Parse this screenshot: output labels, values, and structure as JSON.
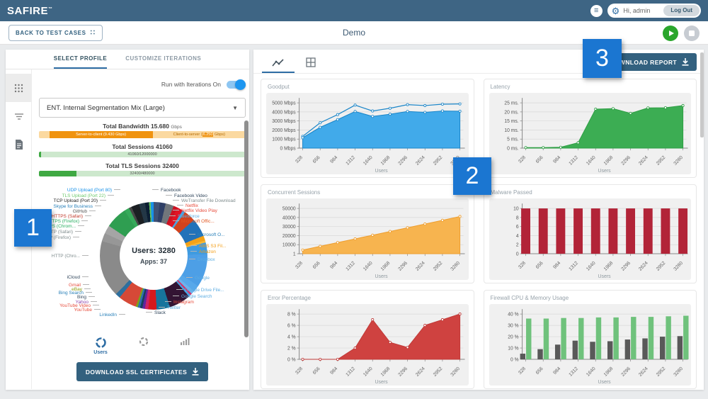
{
  "nav": {
    "brand": "SAFIRE",
    "greeting": "Hi, admin",
    "logout_label": "Log Out"
  },
  "header": {
    "back_button": "BACK TO TEST CASES",
    "title": "Demo"
  },
  "callouts": {
    "one": "1",
    "two": "2",
    "three": "3"
  },
  "left_panel": {
    "tabs": [
      {
        "label": "SELECT PROFILE"
      },
      {
        "label": "CUSTOMIZE ITERATIONS"
      }
    ],
    "iterations_toggle_label": "Run with Iterations On",
    "profile_select_value": "ENT. Internal Segmentation Mix (Large)",
    "bandwidth": {
      "title": "Total Bandwidth  15.680",
      "unit": "Gbps",
      "server_to_client": "Server-to-client (9.430 Gbps)",
      "client_prefix": "Client-to-server (",
      "client_value": "6.250",
      "client_suffix": " Gbps)"
    },
    "sessions": {
      "title": "Total Sessions 41060",
      "bar_text": "41060/12000000",
      "fill_pct": 1
    },
    "tls_sessions": {
      "title": "Total TLS Sessions 32400",
      "bar_text": "32400/480000",
      "fill_pct": 18
    },
    "donut": {
      "center_line1": "Users: 3280",
      "center_line2": "Apps: 37",
      "segments": [
        {
          "name": "Facebook",
          "color": "#3e5175",
          "pct": 1.8
        },
        {
          "name": "Facebook Video",
          "color": "#2f3f66",
          "pct": 1.8
        },
        {
          "name": "WeTransfer File Download",
          "color": "#71767b",
          "pct": 2.5
        },
        {
          "name": "Netflix",
          "color": "#cc1222",
          "pct": 1.2
        },
        {
          "name": "Netflix Video Play",
          "color": "#e01425",
          "pct": 1.8
        },
        {
          "name": "Salesforce",
          "color": "#4aa3df",
          "pct": 0.8
        },
        {
          "name": "Microsoft Office 365",
          "color": "#d2421e",
          "pct": 3.5
        },
        {
          "name": "Microsoft OneDrive",
          "color": "#2272b9",
          "pct": 5.5
        },
        {
          "name": "AWS S3 File",
          "color": "#f3a218",
          "pct": 1.5
        },
        {
          "name": "Amazon",
          "color": "#f7b733",
          "pct": 0.6
        },
        {
          "name": "Dropbox",
          "color": "#3f9be0",
          "pct": 3.5
        },
        {
          "name": "Google",
          "color": "#4d9fe6",
          "pct": 10
        },
        {
          "name": "Google Drive File",
          "color": "#57a8ea",
          "pct": 2
        },
        {
          "name": "Google Search",
          "color": "#6db3ec",
          "pct": 1
        },
        {
          "name": "Instagram",
          "color": "#d6356b",
          "pct": 0.5
        },
        {
          "name": "Twitter",
          "color": "#45a4e6",
          "pct": 0.6
        },
        {
          "name": "Slack",
          "color": "#331433",
          "pct": 6.5
        },
        {
          "name": "LinkedIn",
          "color": "#17749c",
          "pct": 4
        },
        {
          "name": "YouTube",
          "color": "#d7191c",
          "pct": 2.5
        },
        {
          "name": "YouTube Video",
          "color": "#cc2366",
          "pct": 1
        },
        {
          "name": "Yahoo",
          "color": "#5f259f",
          "pct": 0.8
        },
        {
          "name": "Bing",
          "color": "#18405c",
          "pct": 0.7
        },
        {
          "name": "Bing Search",
          "color": "#2d6fb2",
          "pct": 0.7
        },
        {
          "name": "eBay",
          "color": "#7aa31a",
          "pct": 0.6
        },
        {
          "name": "Gmail",
          "color": "#d64937",
          "pct": 5.5
        },
        {
          "name": "iCloud",
          "color": "#2d6f9e",
          "pct": 1.5
        },
        {
          "name": "HTTP (Chrome)",
          "color": "#8a8a8a",
          "pct": 17
        },
        {
          "name": "HTTP (Firefox)",
          "color": "#979797",
          "pct": 2.5
        },
        {
          "name": "HTTP (Safari)",
          "color": "#a5a5a5",
          "pct": 2.5
        },
        {
          "name": "HTTPS (Chrome)",
          "color": "#2f9e51",
          "pct": 6.5
        },
        {
          "name": "HTTPS (Firefox)",
          "color": "#36aa5a",
          "pct": 1.5
        },
        {
          "name": "HTTPS (Safari)",
          "color": "#474747",
          "pct": 0.8
        },
        {
          "name": "GitHub",
          "color": "#1b1f23",
          "pct": 2.4
        },
        {
          "name": "Skype for Business",
          "color": "#233746",
          "pct": 1.8
        },
        {
          "name": "TCP Upload (Port 20)",
          "color": "#0b1e33",
          "pct": 1.2
        },
        {
          "name": "TLS Upload (Port 22)",
          "color": "#62c462",
          "pct": 0.5
        },
        {
          "name": "UDP Upload (Port 80)",
          "color": "#1791e8",
          "pct": 0.9
        }
      ],
      "labels_left": [
        {
          "text": "UDP Upload (Port 80)",
          "color": "#1791e8"
        },
        {
          "text": "TLS Upload (Port 22)",
          "color": "#6cc96c"
        },
        {
          "text": "TCP Upload (Port 20)",
          "color": "#222222"
        },
        {
          "text": "Skype for Business",
          "color": "#2980b9"
        },
        {
          "text": "GitHub",
          "color": "#555555"
        },
        {
          "text": "HTTPS (Safari)",
          "color": "#c0392b"
        },
        {
          "text": "HTTPS (Firefox)",
          "color": "#27ae60"
        },
        {
          "text": "HTTPS (Chrom...",
          "color": "#27ae60"
        },
        {
          "text": "HTTP (Safari)",
          "color": "#7f8c8d"
        },
        {
          "text": "HTTP (Firefox)",
          "color": "#7f8c8d"
        },
        {
          "text": "HTTP (Chro...",
          "color": "#7f8c8d"
        },
        {
          "text": "iCloud",
          "color": "#34495e"
        },
        {
          "text": "Gmail",
          "color": "#e74c3c"
        },
        {
          "text": "eBay",
          "color": "#8a9a0a"
        },
        {
          "text": "Bing Search",
          "color": "#2980b9"
        },
        {
          "text": "Bing",
          "color": "#34495e"
        },
        {
          "text": "Yahoo",
          "color": "#8e44ad"
        },
        {
          "text": "YouTube Video",
          "color": "#e74c3c"
        },
        {
          "text": "YouTube",
          "color": "#e74c3c"
        },
        {
          "text": "LinkedIn",
          "color": "#2980b9"
        }
      ],
      "labels_right": [
        {
          "text": "Facebook",
          "color": "#34495e"
        },
        {
          "text": "Facebook Video",
          "color": "#34495e"
        },
        {
          "text": "WeTransfer File Download",
          "color": "#7f8c8d"
        },
        {
          "text": "Netflix",
          "color": "#e74c3c"
        },
        {
          "text": "Netflix Video Play",
          "color": "#e74c3c"
        },
        {
          "text": "Salesforce",
          "color": "#5dade2"
        },
        {
          "text": "Microsoft Offic...",
          "color": "#e25822"
        },
        {
          "text": "Microsoft O...",
          "color": "#2980b9"
        },
        {
          "text": "AWS S3 Fil...",
          "color": "#f39c12"
        },
        {
          "text": "Amazon",
          "color": "#f39c12"
        },
        {
          "text": "Dropbox",
          "color": "#5dade2"
        },
        {
          "text": "Google",
          "color": "#5dade2"
        },
        {
          "text": "Google Drive File...",
          "color": "#5dade2"
        },
        {
          "text": "Google Search",
          "color": "#5dade2"
        },
        {
          "text": "Instagram",
          "color": "#e74c3c"
        },
        {
          "text": "Twitter",
          "color": "#5dade2"
        },
        {
          "text": "Slack",
          "color": "#34495e"
        }
      ]
    },
    "view_icons": [
      {
        "label": "Users"
      },
      {
        "label": ""
      },
      {
        "label": ""
      }
    ],
    "download_button": "DOWNLOAD SSL CERTIFICATES"
  },
  "right_panel": {
    "download_button": "DOWNLOAD REPORT",
    "xlabel": "Users",
    "categories": [
      "328",
      "656",
      "984",
      "1312",
      "1640",
      "1968",
      "2296",
      "2624",
      "2952",
      "3280"
    ],
    "charts": [
      {
        "title": "Goodput",
        "type": "area-line",
        "ymax": 5000,
        "yticks": [
          {
            "v": 0,
            "t": "0 Mbps"
          },
          {
            "v": 1000,
            "t": "1000 Mbps"
          },
          {
            "v": 2000,
            "t": "2000 Mbps"
          },
          {
            "v": 3000,
            "t": "3000 Mbps"
          },
          {
            "v": 4000,
            "t": "4000 Mbps"
          },
          {
            "v": 5000,
            "t": "5000 Mbps"
          }
        ],
        "fill": "#41aaea",
        "stroke": "#1a85c8",
        "series": [
          {
            "name": "line",
            "values": [
              1300,
              2800,
              3700,
              4750,
              4100,
              4400,
              4800,
              4700,
              4850,
              4880
            ]
          },
          {
            "name": "area",
            "values": [
              1150,
              2300,
              3150,
              4050,
              3500,
              3750,
              4050,
              3950,
              4100,
              4080
            ]
          }
        ]
      },
      {
        "title": "Latency",
        "type": "area",
        "ymax": 25,
        "yticks": [
          {
            "v": 0,
            "t": "0 ms."
          },
          {
            "v": 5,
            "t": "5 ms."
          },
          {
            "v": 10,
            "t": "10 ms."
          },
          {
            "v": 15,
            "t": "15 ms."
          },
          {
            "v": 20,
            "t": "20 ms."
          },
          {
            "v": 25,
            "t": "25 ms."
          }
        ],
        "fill": "#3cad53",
        "stroke": "#2e9e44",
        "series": [
          {
            "name": "latency",
            "values": [
              0.3,
              0.3,
              0.5,
              3,
              21.5,
              21.8,
              19.2,
              22.2,
              22.3,
              23.5
            ]
          }
        ]
      },
      {
        "title": "Concurrent Sessions",
        "type": "area",
        "ymax": 50000,
        "yticks": [
          {
            "v": 0,
            "t": "1"
          },
          {
            "v": 10000,
            "t": "10000"
          },
          {
            "v": 20000,
            "t": "20000"
          },
          {
            "v": 30000,
            "t": "30000"
          },
          {
            "v": 40000,
            "t": "40000"
          },
          {
            "v": 50000,
            "t": "50000"
          }
        ],
        "fill": "#f7b44f",
        "stroke": "#ee9e2f",
        "series": [
          {
            "name": "sessions",
            "values": [
              4100,
              8200,
              12300,
              16400,
              20500,
              24600,
              28700,
              32800,
              36900,
              41100
            ]
          }
        ]
      },
      {
        "title": "Malware Passed",
        "type": "bar",
        "ymax": 10,
        "yticks": [
          {
            "v": 0,
            "t": "0"
          },
          {
            "v": 2,
            "t": "2"
          },
          {
            "v": 4,
            "t": "4"
          },
          {
            "v": 6,
            "t": "6"
          },
          {
            "v": 8,
            "t": "8"
          },
          {
            "v": 10,
            "t": "10"
          }
        ],
        "fill": "#b22438",
        "stroke": "#b22438",
        "series": [
          {
            "name": "malware",
            "values": [
              10,
              10,
              10,
              10,
              10,
              10,
              10,
              10,
              10,
              10
            ]
          }
        ]
      },
      {
        "title": "Error Percentage",
        "type": "area",
        "ymax": 8,
        "yticks": [
          {
            "v": 0,
            "t": "0 %"
          },
          {
            "v": 2,
            "t": "2 %"
          },
          {
            "v": 4,
            "t": "4 %"
          },
          {
            "v": 6,
            "t": "6 %"
          },
          {
            "v": 8,
            "t": "8 %"
          }
        ],
        "fill": "#cf4240",
        "stroke": "#c03a38",
        "series": [
          {
            "name": "errors",
            "values": [
              0,
              0,
              0,
              2,
              7,
              3,
              2.1,
              6,
              7,
              8
            ]
          }
        ]
      },
      {
        "title": "Firewall CPU & Memory Usage",
        "type": "groupbar",
        "ymax": 40,
        "yticks": [
          {
            "v": 0,
            "t": "0 %"
          },
          {
            "v": 10,
            "t": "10 %"
          },
          {
            "v": 20,
            "t": "20 %"
          },
          {
            "v": 30,
            "t": "30 %"
          },
          {
            "v": 40,
            "t": "40 %"
          }
        ],
        "series": [
          {
            "name": "cpu",
            "color": "#595959",
            "values": [
              5,
              9,
              13,
              16.5,
              15.5,
              16,
              17.5,
              18.5,
              20,
              20.5
            ]
          },
          {
            "name": "memory",
            "color": "#6fc27c",
            "values": [
              36,
              36,
              36.5,
              36.5,
              37,
              37,
              37.5,
              37.5,
              38,
              38.5
            ]
          }
        ]
      }
    ]
  }
}
